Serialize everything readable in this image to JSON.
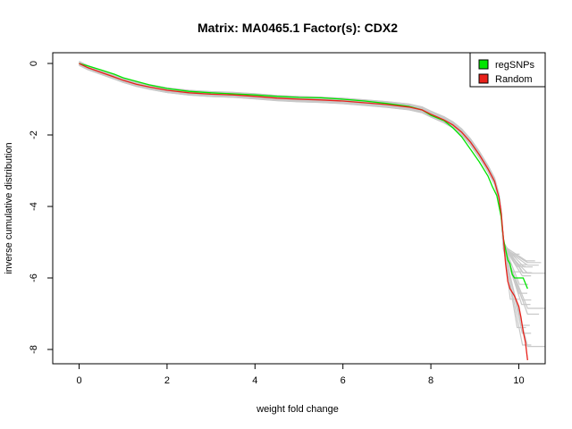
{
  "chart_data": {
    "type": "line",
    "title": "Matrix: MA0465.1 Factor(s): CDX2",
    "xlabel": "weight fold change",
    "ylabel": "inverse cumulative distribution",
    "xlim": [
      -0.6,
      10.6
    ],
    "ylim": [
      -8.4,
      0.3
    ],
    "xticks": [
      0,
      2,
      4,
      6,
      8,
      10
    ],
    "yticks": [
      0,
      -2,
      -4,
      -6,
      -8
    ],
    "grid": false,
    "legend_position": "top-right",
    "colors": {
      "regSNPs": "#00e600",
      "Random": "#e8211a",
      "background": "#c8c8c8"
    },
    "legend": [
      {
        "name": "regSNPs",
        "color": "#00e600"
      },
      {
        "name": "Random",
        "color": "#e8211a"
      }
    ],
    "series": [
      {
        "name": "regSNPs",
        "color": "#00e600",
        "x": [
          0,
          0.2,
          0.5,
          0.8,
          1.0,
          1.3,
          1.6,
          2.0,
          2.5,
          3.0,
          3.5,
          4.0,
          4.5,
          5.0,
          5.5,
          6.0,
          6.5,
          7.0,
          7.5,
          7.8,
          8.0,
          8.3,
          8.5,
          8.7,
          8.9,
          9.1,
          9.3,
          9.4,
          9.5,
          9.6,
          9.65,
          9.7,
          9.75,
          9.8,
          9.85,
          9.9,
          10.0,
          10.1,
          10.2
        ],
        "y": [
          0,
          -0.07,
          -0.18,
          -0.3,
          -0.4,
          -0.5,
          -0.6,
          -0.7,
          -0.78,
          -0.82,
          -0.85,
          -0.88,
          -0.92,
          -0.95,
          -0.96,
          -1.0,
          -1.05,
          -1.12,
          -1.2,
          -1.3,
          -1.45,
          -1.6,
          -1.8,
          -2.05,
          -2.4,
          -2.75,
          -3.15,
          -3.45,
          -3.7,
          -4.3,
          -4.9,
          -5.2,
          -5.5,
          -5.6,
          -5.9,
          -6.0,
          -6.0,
          -6.0,
          -6.3
        ]
      },
      {
        "name": "Random",
        "color": "#e8211a",
        "x": [
          0,
          0.2,
          0.5,
          0.8,
          1.0,
          1.3,
          1.6,
          2.0,
          2.5,
          3.0,
          3.5,
          4.0,
          4.5,
          5.0,
          5.5,
          6.0,
          6.5,
          7.0,
          7.5,
          7.8,
          8.0,
          8.3,
          8.5,
          8.7,
          8.9,
          9.1,
          9.3,
          9.45,
          9.55,
          9.6,
          9.65,
          9.7,
          9.75,
          9.8,
          9.9,
          10.0,
          10.05,
          10.1,
          10.15,
          10.2
        ],
        "y": [
          0,
          -0.12,
          -0.25,
          -0.38,
          -0.47,
          -0.58,
          -0.66,
          -0.75,
          -0.82,
          -0.86,
          -0.88,
          -0.92,
          -0.97,
          -1.0,
          -1.02,
          -1.05,
          -1.1,
          -1.15,
          -1.22,
          -1.3,
          -1.42,
          -1.58,
          -1.72,
          -1.92,
          -2.2,
          -2.55,
          -2.95,
          -3.3,
          -3.75,
          -4.2,
          -4.9,
          -5.6,
          -6.1,
          -6.3,
          -6.5,
          -6.8,
          -7.1,
          -7.5,
          -7.8,
          -8.3
        ]
      }
    ]
  }
}
